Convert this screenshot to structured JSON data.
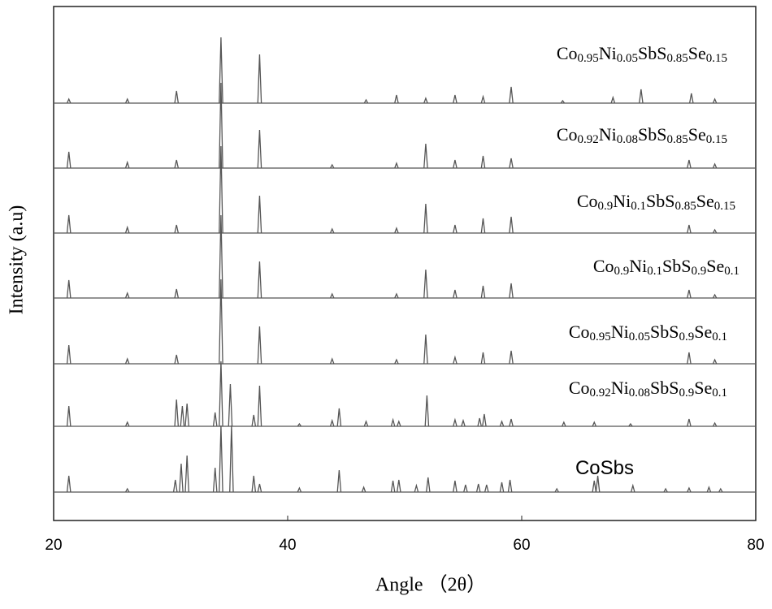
{
  "chart_data": {
    "type": "line",
    "x_label": "Angle （2θ）",
    "y_label": "Intensity (a.u)",
    "xlim": [
      20,
      80
    ],
    "xticks": [
      20,
      40,
      60,
      80
    ],
    "ylim": [
      0,
      633
    ],
    "color": "#555555",
    "series": [
      {
        "name": "Co0.95Ni0.05SbS0.85Se0.15",
        "baseline": 514,
        "x": [
          21.3,
          26.3,
          30.5,
          34.3,
          37.6,
          46.7,
          49.3,
          51.8,
          54.3,
          56.7,
          59.1,
          63.5,
          67.8,
          70.2,
          74.5,
          76.5
        ],
        "values": [
          519,
          519,
          529,
          595,
          574,
          518,
          524,
          520,
          524,
          522,
          534,
          517,
          521,
          531,
          526,
          519
        ]
      },
      {
        "name": "Co0.92Ni0.08SbS0.85Se0.15",
        "baseline": 434,
        "x": [
          21.3,
          26.3,
          30.5,
          34.3,
          37.6,
          43.8,
          49.3,
          51.8,
          54.3,
          56.7,
          59.1,
          74.3,
          76.5
        ],
        "values": [
          454,
          441,
          444,
          539,
          481,
          438,
          440,
          464,
          444,
          449,
          446,
          444,
          439
        ]
      },
      {
        "name": "Co0.9Ni0.1SbS0.85Se0.15",
        "baseline": 354,
        "x": [
          21.3,
          26.3,
          30.5,
          34.3,
          37.6,
          43.8,
          49.3,
          51.8,
          54.3,
          56.7,
          59.1,
          74.3,
          76.5
        ],
        "values": [
          376,
          361,
          364,
          461,
          400,
          359,
          360,
          390,
          364,
          372,
          374,
          364,
          358
        ]
      },
      {
        "name": "Co0.9Ni0.1SbS0.9Se0.1",
        "baseline": 274,
        "x": [
          21.3,
          26.3,
          30.5,
          34.3,
          37.6,
          43.8,
          49.3,
          51.8,
          54.3,
          56.7,
          59.1,
          74.3,
          76.5
        ],
        "values": [
          296,
          280,
          285,
          376,
          319,
          279,
          279,
          309,
          284,
          289,
          292,
          284,
          278
        ]
      },
      {
        "name": "Co0.95Ni0.05SbS0.9Se0.1",
        "baseline": 193,
        "x": [
          21.3,
          26.3,
          30.5,
          34.3,
          37.6,
          43.8,
          49.3,
          51.8,
          54.3,
          56.7,
          59.1,
          74.3,
          76.5
        ],
        "values": [
          216,
          199,
          204,
          297,
          239,
          199,
          198,
          229,
          201,
          207,
          209,
          207,
          198
        ]
      },
      {
        "name": "Co0.92Ni0.08SbS0.9Se0.1",
        "baseline": 116,
        "x": [
          21.3,
          26.3,
          30.5,
          31.0,
          31.4,
          33.8,
          34.3,
          35.1,
          37.1,
          37.6,
          41.0,
          43.8,
          44.4,
          46.7,
          49.0,
          49.5,
          51.9,
          54.3,
          55.0,
          56.4,
          56.8,
          58.3,
          59.1,
          63.6,
          66.2,
          69.3,
          74.3,
          76.5
        ],
        "values": [
          141,
          121,
          149,
          141,
          144,
          133,
          196,
          168,
          130,
          166,
          119,
          123,
          138,
          122,
          124,
          122,
          154,
          124,
          123,
          126,
          131,
          122,
          125,
          121,
          121,
          119,
          125,
          120
        ]
      },
      {
        "name": "CoSbs",
        "baseline": 35,
        "x": [
          21.3,
          26.3,
          30.4,
          30.9,
          31.4,
          33.8,
          34.3,
          35.2,
          37.1,
          37.6,
          41.0,
          44.4,
          46.5,
          49.0,
          49.5,
          51.0,
          52.0,
          54.3,
          55.2,
          56.3,
          57.0,
          58.3,
          59.0,
          63.0,
          66.2,
          66.5,
          69.5,
          72.3,
          74.3,
          76.0,
          77.0
        ],
        "values": [
          55,
          39,
          50,
          70,
          80,
          65,
          117,
          117,
          55,
          45,
          40,
          62,
          41,
          49,
          50,
          43,
          53,
          49,
          44,
          45,
          44,
          47,
          50,
          39,
          49,
          55,
          43,
          39,
          40,
          41,
          39
        ]
      }
    ]
  }
}
